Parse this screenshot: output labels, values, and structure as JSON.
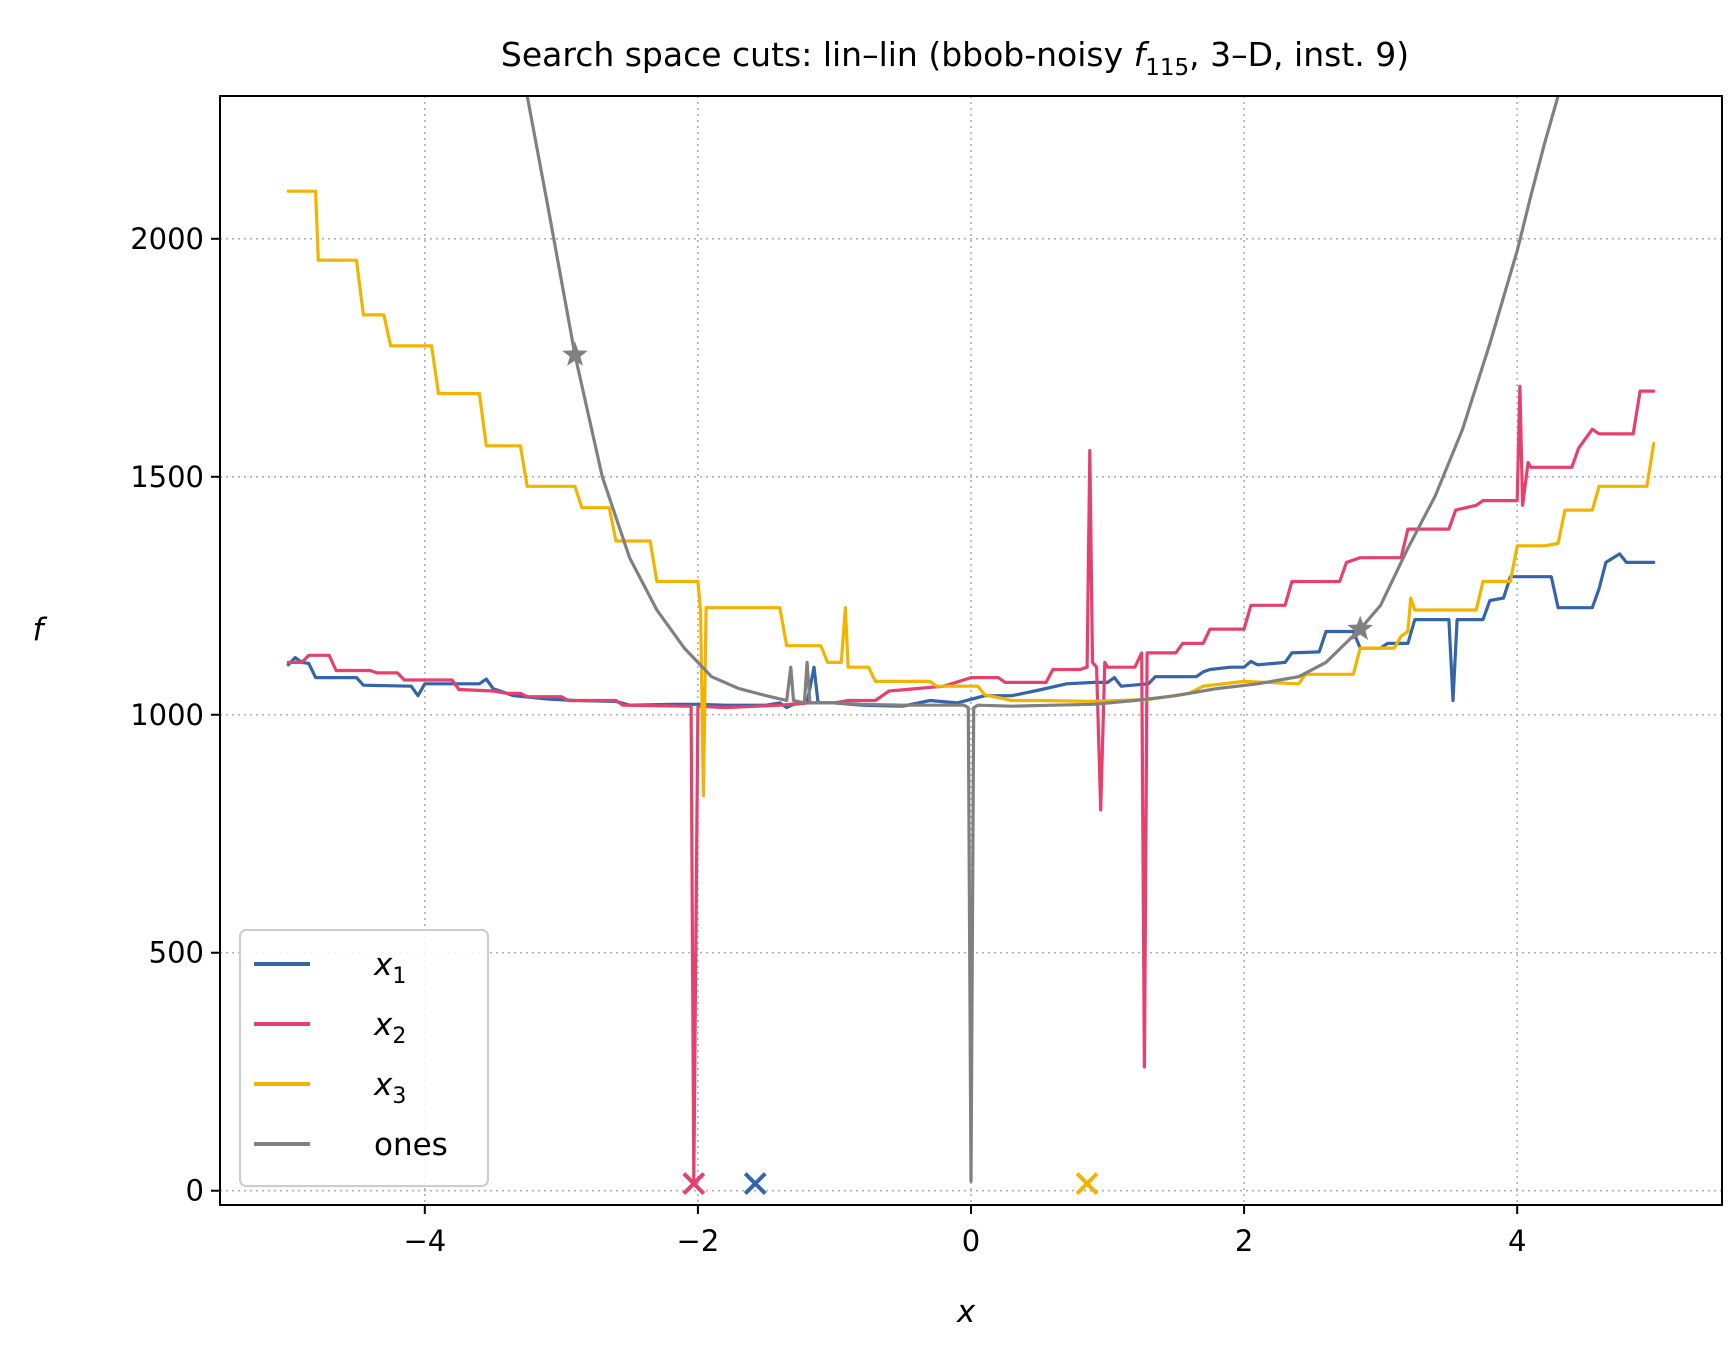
{
  "chart_data": {
    "type": "line",
    "title_parts": {
      "prefix": "Search space cuts: lin–lin (bbob-noisy ",
      "func": "f",
      "func_sub": "115",
      "suffix": ", 3–D, inst. 9)"
    },
    "xlabel": "x",
    "ylabel": "f",
    "xlim": [
      -5.5,
      5.5
    ],
    "ylim": [
      -30,
      2300
    ],
    "xticks": [
      -4,
      -2,
      0,
      2,
      4
    ],
    "xtick_labels": [
      "−4",
      "−2",
      "0",
      "2",
      "4"
    ],
    "yticks": [
      0,
      500,
      1000,
      1500,
      2000
    ],
    "ytick_labels": [
      "0",
      "500",
      "1000",
      "1500",
      "2000"
    ],
    "grid": true,
    "legend_position": "lower-left",
    "series": [
      {
        "name": "x",
        "name_sub": "1",
        "color": "#3465a8",
        "points": [
          [
            -5,
            1105
          ],
          [
            -4.95,
            1120
          ],
          [
            -4.9,
            1110
          ],
          [
            -4.85,
            1108
          ],
          [
            -4.8,
            1078
          ],
          [
            -4.5,
            1078
          ],
          [
            -4.45,
            1062
          ],
          [
            -4.1,
            1060
          ],
          [
            -4.05,
            1040
          ],
          [
            -4.0,
            1065
          ],
          [
            -3.6,
            1065
          ],
          [
            -3.55,
            1075
          ],
          [
            -3.5,
            1055
          ],
          [
            -3.4,
            1045
          ],
          [
            -3.35,
            1040
          ],
          [
            -3.1,
            1033
          ],
          [
            -2.9,
            1030
          ],
          [
            -2.6,
            1028
          ],
          [
            -2.5,
            1020
          ],
          [
            -2.2,
            1022
          ],
          [
            -2.0,
            1022
          ],
          [
            -1.8,
            1020
          ],
          [
            -1.5,
            1020
          ],
          [
            -1.4,
            1025
          ],
          [
            -1.35,
            1015
          ],
          [
            -1.3,
            1022
          ],
          [
            -1.2,
            1025
          ],
          [
            -1.15,
            1100
          ],
          [
            -1.12,
            1025
          ],
          [
            -1.0,
            1025
          ],
          [
            -0.8,
            1020
          ],
          [
            -0.5,
            1018
          ],
          [
            -0.3,
            1030
          ],
          [
            -0.1,
            1025
          ],
          [
            0.1,
            1040
          ],
          [
            0.3,
            1040
          ],
          [
            0.5,
            1052
          ],
          [
            0.7,
            1065
          ],
          [
            0.9,
            1068
          ],
          [
            1.0,
            1068
          ],
          [
            1.05,
            1078
          ],
          [
            1.1,
            1060
          ],
          [
            1.3,
            1065
          ],
          [
            1.35,
            1080
          ],
          [
            1.65,
            1080
          ],
          [
            1.7,
            1090
          ],
          [
            1.75,
            1095
          ],
          [
            1.9,
            1100
          ],
          [
            2.0,
            1100
          ],
          [
            2.05,
            1112
          ],
          [
            2.1,
            1105
          ],
          [
            2.3,
            1110
          ],
          [
            2.35,
            1130
          ],
          [
            2.55,
            1132
          ],
          [
            2.6,
            1175
          ],
          [
            2.8,
            1175
          ],
          [
            2.85,
            1140
          ],
          [
            3.0,
            1140
          ],
          [
            3.05,
            1150
          ],
          [
            3.2,
            1150
          ],
          [
            3.25,
            1200
          ],
          [
            3.5,
            1200
          ],
          [
            3.53,
            1030
          ],
          [
            3.56,
            1200
          ],
          [
            3.75,
            1200
          ],
          [
            3.8,
            1240
          ],
          [
            3.9,
            1245
          ],
          [
            3.95,
            1290
          ],
          [
            4.25,
            1290
          ],
          [
            4.3,
            1225
          ],
          [
            4.55,
            1225
          ],
          [
            4.6,
            1265
          ],
          [
            4.65,
            1320
          ],
          [
            4.75,
            1338
          ],
          [
            4.8,
            1320
          ],
          [
            5.0,
            1320
          ]
        ]
      },
      {
        "name": "x",
        "name_sub": "2",
        "color": "#e5416e",
        "points": [
          [
            -5,
            1110
          ],
          [
            -4.9,
            1110
          ],
          [
            -4.85,
            1125
          ],
          [
            -4.7,
            1125
          ],
          [
            -4.65,
            1093
          ],
          [
            -4.4,
            1093
          ],
          [
            -4.35,
            1088
          ],
          [
            -4.2,
            1088
          ],
          [
            -4.15,
            1073
          ],
          [
            -3.8,
            1073
          ],
          [
            -3.75,
            1053
          ],
          [
            -3.5,
            1050
          ],
          [
            -3.4,
            1045
          ],
          [
            -3.3,
            1045
          ],
          [
            -3.25,
            1038
          ],
          [
            -3.0,
            1038
          ],
          [
            -2.95,
            1030
          ],
          [
            -2.6,
            1030
          ],
          [
            -2.55,
            1020
          ],
          [
            -2.1,
            1018
          ],
          [
            -2.05,
            1018
          ],
          [
            -2.03,
            20
          ],
          [
            -2.0,
            1018
          ],
          [
            -1.8,
            1015
          ],
          [
            -1.4,
            1020
          ],
          [
            -1.2,
            1025
          ],
          [
            -1.0,
            1025
          ],
          [
            -0.9,
            1030
          ],
          [
            -0.7,
            1030
          ],
          [
            -0.6,
            1050
          ],
          [
            -0.4,
            1055
          ],
          [
            -0.2,
            1060
          ],
          [
            0.0,
            1078
          ],
          [
            0.2,
            1078
          ],
          [
            0.25,
            1068
          ],
          [
            0.55,
            1068
          ],
          [
            0.6,
            1095
          ],
          [
            0.8,
            1095
          ],
          [
            0.85,
            1100
          ],
          [
            0.87,
            1555
          ],
          [
            0.89,
            1110
          ],
          [
            0.92,
            1100
          ],
          [
            0.95,
            800
          ],
          [
            0.98,
            1110
          ],
          [
            1.0,
            1100
          ],
          [
            1.2,
            1100
          ],
          [
            1.25,
            1130
          ],
          [
            1.27,
            260
          ],
          [
            1.29,
            1130
          ],
          [
            1.5,
            1130
          ],
          [
            1.55,
            1150
          ],
          [
            1.7,
            1150
          ],
          [
            1.75,
            1180
          ],
          [
            1.9,
            1180
          ],
          [
            2.0,
            1180
          ],
          [
            2.05,
            1230
          ],
          [
            2.3,
            1230
          ],
          [
            2.35,
            1280
          ],
          [
            2.7,
            1280
          ],
          [
            2.75,
            1320
          ],
          [
            2.85,
            1330
          ],
          [
            3.15,
            1330
          ],
          [
            3.2,
            1390
          ],
          [
            3.5,
            1390
          ],
          [
            3.55,
            1430
          ],
          [
            3.7,
            1440
          ],
          [
            3.75,
            1450
          ],
          [
            4.0,
            1450
          ],
          [
            4.02,
            1690
          ],
          [
            4.04,
            1440
          ],
          [
            4.08,
            1530
          ],
          [
            4.1,
            1520
          ],
          [
            4.4,
            1520
          ],
          [
            4.45,
            1560
          ],
          [
            4.55,
            1600
          ],
          [
            4.6,
            1590
          ],
          [
            4.85,
            1590
          ],
          [
            4.9,
            1680
          ],
          [
            5.0,
            1680
          ]
        ]
      },
      {
        "name": "x",
        "name_sub": "3",
        "color": "#f2b400",
        "points": [
          [
            -5,
            2100
          ],
          [
            -4.8,
            2100
          ],
          [
            -4.78,
            1955
          ],
          [
            -4.5,
            1955
          ],
          [
            -4.45,
            1840
          ],
          [
            -4.3,
            1840
          ],
          [
            -4.25,
            1775
          ],
          [
            -3.95,
            1775
          ],
          [
            -3.9,
            1675
          ],
          [
            -3.6,
            1675
          ],
          [
            -3.55,
            1565
          ],
          [
            -3.3,
            1565
          ],
          [
            -3.25,
            1480
          ],
          [
            -2.9,
            1480
          ],
          [
            -2.85,
            1435
          ],
          [
            -2.65,
            1435
          ],
          [
            -2.6,
            1365
          ],
          [
            -2.35,
            1365
          ],
          [
            -2.3,
            1280
          ],
          [
            -2.0,
            1280
          ],
          [
            -1.98,
            1218
          ],
          [
            -1.96,
            830
          ],
          [
            -1.94,
            1225
          ],
          [
            -1.4,
            1225
          ],
          [
            -1.35,
            1145
          ],
          [
            -1.1,
            1145
          ],
          [
            -1.05,
            1110
          ],
          [
            -0.95,
            1110
          ],
          [
            -0.92,
            1225
          ],
          [
            -0.9,
            1100
          ],
          [
            -0.75,
            1100
          ],
          [
            -0.7,
            1070
          ],
          [
            -0.3,
            1070
          ],
          [
            -0.25,
            1060
          ],
          [
            0.05,
            1060
          ],
          [
            0.1,
            1042
          ],
          [
            0.3,
            1030
          ],
          [
            0.5,
            1030
          ],
          [
            0.9,
            1028
          ],
          [
            1.3,
            1032
          ],
          [
            1.6,
            1045
          ],
          [
            1.7,
            1060
          ],
          [
            2.0,
            1070
          ],
          [
            2.4,
            1065
          ],
          [
            2.45,
            1085
          ],
          [
            2.8,
            1085
          ],
          [
            2.85,
            1140
          ],
          [
            3.1,
            1140
          ],
          [
            3.15,
            1165
          ],
          [
            3.2,
            1175
          ],
          [
            3.22,
            1245
          ],
          [
            3.25,
            1220
          ],
          [
            3.7,
            1220
          ],
          [
            3.75,
            1280
          ],
          [
            3.95,
            1280
          ],
          [
            4.0,
            1355
          ],
          [
            4.2,
            1355
          ],
          [
            4.3,
            1360
          ],
          [
            4.35,
            1430
          ],
          [
            4.55,
            1430
          ],
          [
            4.6,
            1480
          ],
          [
            4.95,
            1480
          ],
          [
            5.0,
            1570
          ]
        ]
      },
      {
        "name": "ones",
        "name_sub": "",
        "color": "#808080",
        "points": [
          [
            -3.25,
            2300
          ],
          [
            -3.1,
            2070
          ],
          [
            -2.9,
            1756
          ],
          [
            -2.7,
            1500
          ],
          [
            -2.5,
            1330
          ],
          [
            -2.3,
            1220
          ],
          [
            -2.1,
            1140
          ],
          [
            -1.9,
            1080
          ],
          [
            -1.7,
            1055
          ],
          [
            -1.5,
            1040
          ],
          [
            -1.35,
            1030
          ],
          [
            -1.32,
            1100
          ],
          [
            -1.3,
            1030
          ],
          [
            -1.22,
            1025
          ],
          [
            -1.2,
            1110
          ],
          [
            -1.18,
            1025
          ],
          [
            -1.0,
            1025
          ],
          [
            -0.8,
            1022
          ],
          [
            -0.5,
            1020
          ],
          [
            -0.2,
            1020
          ],
          [
            -0.05,
            1020
          ],
          [
            -0.02,
            1015
          ],
          [
            0.0,
            20
          ],
          [
            0.02,
            1015
          ],
          [
            0.05,
            1020
          ],
          [
            0.3,
            1018
          ],
          [
            0.6,
            1020
          ],
          [
            0.9,
            1022
          ],
          [
            1.2,
            1030
          ],
          [
            1.5,
            1040
          ],
          [
            1.8,
            1055
          ],
          [
            2.1,
            1065
          ],
          [
            2.4,
            1080
          ],
          [
            2.6,
            1110
          ],
          [
            2.85,
            1180
          ],
          [
            3.0,
            1230
          ],
          [
            3.2,
            1350
          ],
          [
            3.4,
            1460
          ],
          [
            3.6,
            1600
          ],
          [
            3.8,
            1780
          ],
          [
            4.0,
            1975
          ],
          [
            4.1,
            2090
          ],
          [
            4.2,
            2200
          ],
          [
            4.3,
            2300
          ]
        ]
      }
    ],
    "markers": [
      {
        "type": "star",
        "color": "#808080",
        "x": -2.9,
        "y": 1756
      },
      {
        "type": "star",
        "color": "#808080",
        "x": 2.85,
        "y": 1180
      },
      {
        "type": "cross",
        "color": "#e5416e",
        "x": -2.03,
        "y": 15
      },
      {
        "type": "cross",
        "color": "#3465a8",
        "x": -1.58,
        "y": 15
      },
      {
        "type": "cross",
        "color": "#f2b400",
        "x": 0.85,
        "y": 15
      }
    ]
  }
}
